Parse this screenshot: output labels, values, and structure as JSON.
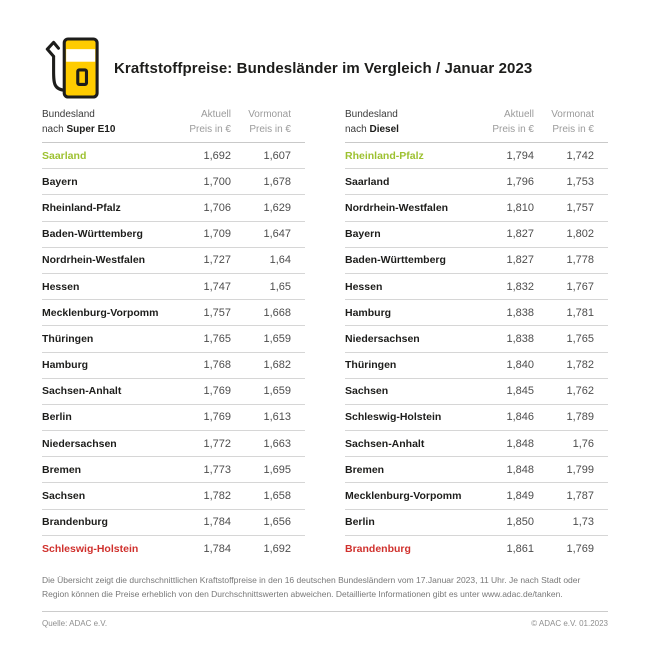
{
  "header": {
    "title": "Kraftstoffpreise: Bundesländer im Vergleich / Januar 2023",
    "icon": "fuel-pump-icon"
  },
  "columns": {
    "state_label": "Bundesland",
    "state_prefix": "nach",
    "aktuell_line1": "Aktuell",
    "aktuell_line2": "Preis in €",
    "vormonat_line1": "Vormonat",
    "vormonat_line2": "Preis in €"
  },
  "chart_data": [
    {
      "type": "table",
      "title": "Bundesland nach Super E10",
      "fuel": "Super E10",
      "columns": [
        "Bundesland",
        "Aktuell Preis in €",
        "Vormonat Preis in €"
      ],
      "rows": [
        {
          "state": "Saarland",
          "aktuell": "1,692",
          "vormonat": "1,607",
          "highlight": "green"
        },
        {
          "state": "Bayern",
          "aktuell": "1,700",
          "vormonat": "1,678",
          "highlight": ""
        },
        {
          "state": "Rheinland-Pfalz",
          "aktuell": "1,706",
          "vormonat": "1,629",
          "highlight": ""
        },
        {
          "state": "Baden-Württemberg",
          "aktuell": "1,709",
          "vormonat": "1,647",
          "highlight": ""
        },
        {
          "state": "Nordrhein-Westfalen",
          "aktuell": "1,727",
          "vormonat": "1,64",
          "highlight": ""
        },
        {
          "state": "Hessen",
          "aktuell": "1,747",
          "vormonat": "1,65",
          "highlight": ""
        },
        {
          "state": "Mecklenburg-Vorpommern",
          "aktuell": "1,757",
          "vormonat": "1,668",
          "highlight": ""
        },
        {
          "state": "Thüringen",
          "aktuell": "1,765",
          "vormonat": "1,659",
          "highlight": ""
        },
        {
          "state": "Hamburg",
          "aktuell": "1,768",
          "vormonat": "1,682",
          "highlight": ""
        },
        {
          "state": "Sachsen-Anhalt",
          "aktuell": "1,769",
          "vormonat": "1,659",
          "highlight": ""
        },
        {
          "state": "Berlin",
          "aktuell": "1,769",
          "vormonat": "1,613",
          "highlight": ""
        },
        {
          "state": "Niedersachsen",
          "aktuell": "1,772",
          "vormonat": "1,663",
          "highlight": ""
        },
        {
          "state": "Bremen",
          "aktuell": "1,773",
          "vormonat": "1,695",
          "highlight": ""
        },
        {
          "state": "Sachsen",
          "aktuell": "1,782",
          "vormonat": "1,658",
          "highlight": ""
        },
        {
          "state": "Brandenburg",
          "aktuell": "1,784",
          "vormonat": "1,656",
          "highlight": ""
        },
        {
          "state": "Schleswig-Holstein",
          "aktuell": "1,784",
          "vormonat": "1,692",
          "highlight": "red"
        }
      ]
    },
    {
      "type": "table",
      "title": "Bundesland nach Diesel",
      "fuel": "Diesel",
      "columns": [
        "Bundesland",
        "Aktuell Preis in €",
        "Vormonat Preis in €"
      ],
      "rows": [
        {
          "state": "Rheinland-Pfalz",
          "aktuell": "1,794",
          "vormonat": "1,742",
          "highlight": "green"
        },
        {
          "state": "Saarland",
          "aktuell": "1,796",
          "vormonat": "1,753",
          "highlight": ""
        },
        {
          "state": "Nordrhein-Westfalen",
          "aktuell": "1,810",
          "vormonat": "1,757",
          "highlight": ""
        },
        {
          "state": "Bayern",
          "aktuell": "1,827",
          "vormonat": "1,802",
          "highlight": ""
        },
        {
          "state": "Baden-Württemberg",
          "aktuell": "1,827",
          "vormonat": "1,778",
          "highlight": ""
        },
        {
          "state": "Hessen",
          "aktuell": "1,832",
          "vormonat": "1,767",
          "highlight": ""
        },
        {
          "state": "Hamburg",
          "aktuell": "1,838",
          "vormonat": "1,781",
          "highlight": ""
        },
        {
          "state": "Niedersachsen",
          "aktuell": "1,838",
          "vormonat": "1,765",
          "highlight": ""
        },
        {
          "state": "Thüringen",
          "aktuell": "1,840",
          "vormonat": "1,782",
          "highlight": ""
        },
        {
          "state": "Sachsen",
          "aktuell": "1,845",
          "vormonat": "1,762",
          "highlight": ""
        },
        {
          "state": "Schleswig-Holstein",
          "aktuell": "1,846",
          "vormonat": "1,789",
          "highlight": ""
        },
        {
          "state": "Sachsen-Anhalt",
          "aktuell": "1,848",
          "vormonat": "1,76",
          "highlight": ""
        },
        {
          "state": "Bremen",
          "aktuell": "1,848",
          "vormonat": "1,799",
          "highlight": ""
        },
        {
          "state": "Mecklenburg-Vorpommern",
          "aktuell": "1,849",
          "vormonat": "1,787",
          "highlight": ""
        },
        {
          "state": "Berlin",
          "aktuell": "1,850",
          "vormonat": "1,73",
          "highlight": ""
        },
        {
          "state": "Brandenburg",
          "aktuell": "1,861",
          "vormonat": "1,769",
          "highlight": "red"
        }
      ]
    }
  ],
  "footnote": "Die Übersicht zeigt die durchschnittlichen Kraftstoffpreise in den 16 deutschen Bundesländern vom 17.Januar 2023, 11 Uhr. Je nach Stadt oder Region können die Preise erheblich von den Durchschnittswerten abweichen. Detaillierte Informationen gibt es unter www.adac.de/tanken.",
  "footer": {
    "source": "Quelle: ADAC e.V.",
    "copyright": "© ADAC e.V. 01.2023"
  },
  "colors": {
    "brand_yellow": "#FFCC00",
    "highlight_green": "#9DC130",
    "highlight_red": "#D0312D"
  }
}
